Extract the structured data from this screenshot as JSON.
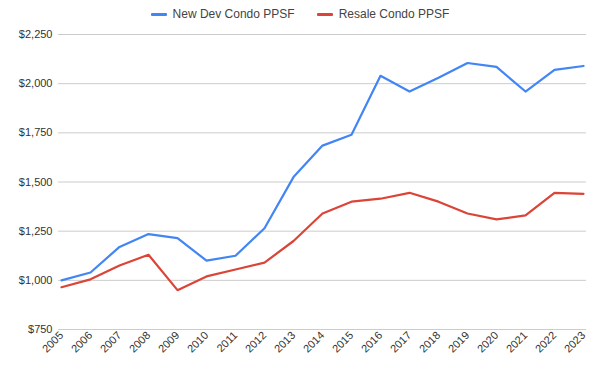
{
  "chart_data": {
    "type": "line",
    "categories": [
      "2005",
      "2006",
      "2007",
      "2008",
      "2009",
      "2010",
      "2011",
      "2012",
      "2013",
      "2014",
      "2015",
      "2016",
      "2017",
      "2018",
      "2019",
      "2020",
      "2021",
      "2022",
      "2023"
    ],
    "series": [
      {
        "name": "New Dev Condo PPSF",
        "color": "#4285f4",
        "values": [
          1000,
          1040,
          1170,
          1235,
          1215,
          1100,
          1125,
          1265,
          1525,
          1685,
          1740,
          2040,
          1960,
          2030,
          2105,
          2085,
          1960,
          2070,
          2090
        ]
      },
      {
        "name": "Resale Condo PPSF",
        "color": "#db4437",
        "values": [
          965,
          1005,
          1075,
          1130,
          950,
          1020,
          1055,
          1090,
          1200,
          1340,
          1400,
          1415,
          1445,
          1400,
          1340,
          1310,
          1330,
          1445,
          1440
        ]
      }
    ],
    "ylim": [
      750,
      2250
    ],
    "yticks": [
      {
        "value": 750,
        "label": "$750"
      },
      {
        "value": 1000,
        "label": "$1,000"
      },
      {
        "value": 1250,
        "label": "$1,250"
      },
      {
        "value": 1500,
        "label": "$1,500"
      },
      {
        "value": 1750,
        "label": "$1,750"
      },
      {
        "value": 2000,
        "label": "$2,000"
      },
      {
        "value": 2250,
        "label": "$2,250"
      }
    ],
    "grid": true,
    "legend": "top"
  }
}
